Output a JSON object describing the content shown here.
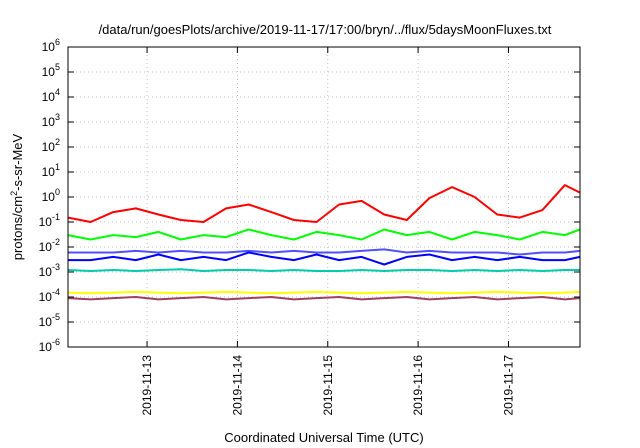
{
  "chart_data": {
    "type": "line",
    "title": "/data/run/goesPlots/archive/2019-11-17/17:00/bryn/../flux/5daysMoonFluxes.txt",
    "xlabel": "Coordinated Universal Time (UTC)",
    "ylabel": "protons/cm²-s-sr-MeV",
    "yscale": "log",
    "ylim": [
      1e-06,
      1000000.0
    ],
    "xlim": [
      "2019-11-12 03:00",
      "2019-11-17 19:00"
    ],
    "grid": true,
    "x_tick_labels": [
      "2019-11-13",
      "2019-11-14",
      "2019-11-15",
      "2019-11-16",
      "2019-11-17"
    ],
    "x_ticks": [
      "2019-11-13",
      "2019-11-14",
      "2019-11-15",
      "2019-11-16",
      "2019-11-17"
    ],
    "y_ticks": [
      {
        "base": "10",
        "exp": "-6"
      },
      {
        "base": "10",
        "exp": "-5"
      },
      {
        "base": "10",
        "exp": "-4"
      },
      {
        "base": "10",
        "exp": "-3"
      },
      {
        "base": "10",
        "exp": "-2"
      },
      {
        "base": "10",
        "exp": "-1"
      },
      {
        "base": "10",
        "exp": "0"
      },
      {
        "base": "10",
        "exp": "1"
      },
      {
        "base": "10",
        "exp": "2"
      },
      {
        "base": "10",
        "exp": "3"
      },
      {
        "base": "10",
        "exp": "4"
      },
      {
        "base": "10",
        "exp": "5"
      },
      {
        "base": "10",
        "exp": "6"
      }
    ],
    "x": [
      "2019-11-12 03:00",
      "2019-11-12 09:00",
      "2019-11-12 15:00",
      "2019-11-12 21:00",
      "2019-11-13 03:00",
      "2019-11-13 09:00",
      "2019-11-13 15:00",
      "2019-11-13 21:00",
      "2019-11-14 03:00",
      "2019-11-14 09:00",
      "2019-11-14 15:00",
      "2019-11-14 21:00",
      "2019-11-15 03:00",
      "2019-11-15 09:00",
      "2019-11-15 15:00",
      "2019-11-15 21:00",
      "2019-11-16 03:00",
      "2019-11-16 09:00",
      "2019-11-16 15:00",
      "2019-11-16 21:00",
      "2019-11-17 03:00",
      "2019-11-17 09:00",
      "2019-11-17 15:00",
      "2019-11-17 19:00"
    ],
    "series": [
      {
        "color": "#ff0000",
        "values": [
          0.15,
          0.1,
          0.25,
          0.35,
          0.2,
          0.12,
          0.1,
          0.35,
          0.5,
          0.25,
          0.12,
          0.1,
          0.5,
          0.7,
          0.2,
          0.12,
          0.9,
          2.5,
          1.0,
          0.2,
          0.15,
          0.3,
          3.0,
          1.5
        ]
      },
      {
        "color": "#00ff00",
        "values": [
          0.03,
          0.02,
          0.03,
          0.025,
          0.04,
          0.02,
          0.03,
          0.025,
          0.05,
          0.03,
          0.02,
          0.04,
          0.03,
          0.02,
          0.05,
          0.03,
          0.04,
          0.02,
          0.04,
          0.03,
          0.02,
          0.04,
          0.03,
          0.05
        ]
      },
      {
        "color": "#5050ff",
        "values": [
          0.006,
          0.006,
          0.006,
          0.007,
          0.006,
          0.007,
          0.006,
          0.006,
          0.007,
          0.006,
          0.007,
          0.006,
          0.006,
          0.007,
          0.008,
          0.006,
          0.007,
          0.006,
          0.006,
          0.006,
          0.005,
          0.006,
          0.006,
          0.007
        ]
      },
      {
        "color": "#0000ff",
        "values": [
          0.003,
          0.003,
          0.004,
          0.003,
          0.005,
          0.003,
          0.004,
          0.003,
          0.006,
          0.004,
          0.003,
          0.005,
          0.003,
          0.004,
          0.002,
          0.004,
          0.005,
          0.003,
          0.004,
          0.003,
          0.004,
          0.003,
          0.003,
          0.004
        ]
      },
      {
        "color": "#00ccaa",
        "values": [
          0.0012,
          0.0011,
          0.0012,
          0.0011,
          0.0012,
          0.0013,
          0.0011,
          0.0012,
          0.0012,
          0.0011,
          0.0012,
          0.0011,
          0.0011,
          0.0012,
          0.0011,
          0.0012,
          0.0012,
          0.0011,
          0.0012,
          0.0011,
          0.0012,
          0.0011,
          0.0012,
          0.0012
        ]
      },
      {
        "color": "#ffff00",
        "values": [
          0.00015,
          0.00014,
          0.00015,
          0.00016,
          0.00015,
          0.00014,
          0.00015,
          0.00016,
          0.00015,
          0.00014,
          0.00015,
          0.00016,
          0.00015,
          0.00014,
          0.00015,
          0.00016,
          0.00015,
          0.00014,
          0.00015,
          0.00016,
          0.00015,
          0.00014,
          0.00015,
          0.00016
        ]
      },
      {
        "color": "#a04060",
        "values": [
          9e-05,
          8e-05,
          9e-05,
          0.0001,
          8e-05,
          9e-05,
          0.0001,
          8e-05,
          9e-05,
          0.0001,
          8e-05,
          9e-05,
          0.0001,
          8e-05,
          9e-05,
          0.0001,
          8e-05,
          9e-05,
          0.0001,
          8e-05,
          9e-05,
          0.0001,
          8e-05,
          9e-05
        ]
      }
    ]
  }
}
